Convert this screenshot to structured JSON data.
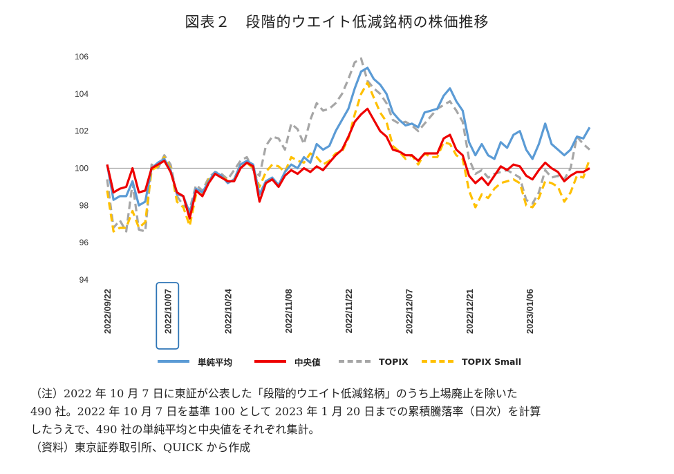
{
  "title": "図表２　段階的ウエイト低減銘柄の株価推移",
  "notes": [
    "（注）2022 年 10 月 7 日に東証が公表した「段階的ウエイト低減銘柄」のうち上場廃止を除いた",
    "490 社。2022 年 10 月 7 日を基準 100 として 2023 年 1 月 20 日までの累積騰落率（日次）を計算",
    "したうえで、490 社の単純平均と中央値をそれぞれ集計。",
    "（資料）東京証券取引所、QUICK から作成"
  ],
  "chart_data": {
    "type": "line",
    "title": "",
    "xlabel": "",
    "ylabel": "",
    "ylim": [
      94,
      106
    ],
    "yticks": [
      "94",
      "96",
      "98",
      "100",
      "102",
      "104",
      "106"
    ],
    "xticks": [
      "2022/09/22",
      "2022/10/07",
      "2022/10/24",
      "2022/11/08",
      "2022/11/22",
      "2022/12/07",
      "2022/12/21",
      "2023/01/06"
    ],
    "highlighted_xtick": "2022/10/07",
    "reference_line": 100,
    "grid": false,
    "legend_position": "bottom",
    "series": [
      {
        "name": "単純平均",
        "color": "#5b9bd5",
        "style": "solid",
        "values": [
          100.2,
          98.3,
          98.5,
          98.5,
          99.3,
          98.0,
          98.2,
          100.0,
          100.3,
          100.5,
          99.9,
          98.6,
          98.5,
          97.6,
          98.9,
          98.7,
          99.3,
          99.8,
          99.6,
          99.2,
          99.4,
          100.2,
          100.4,
          100.2,
          98.6,
          99.3,
          99.5,
          99.1,
          99.8,
          100.2,
          100.0,
          100.6,
          100.3,
          101.3,
          101.0,
          101.2,
          102.0,
          102.6,
          103.2,
          104.3,
          105.2,
          105.4,
          104.8,
          104.5,
          104.0,
          103.0,
          102.6,
          102.3,
          102.4,
          102.2,
          103.0,
          103.1,
          103.2,
          103.9,
          104.3,
          103.6,
          103.1,
          101.4,
          100.7,
          101.3,
          100.7,
          100.5,
          101.4,
          101.1,
          101.8,
          102.0,
          101.0,
          100.5,
          101.3,
          102.4,
          101.3,
          101.0,
          100.7,
          101.0,
          101.7,
          101.6,
          102.2
        ]
      },
      {
        "name": "中央値",
        "color": "#ee0000",
        "style": "solid",
        "values": [
          100.2,
          98.7,
          98.9,
          99.0,
          100.0,
          98.7,
          98.8,
          100.0,
          100.2,
          100.4,
          99.8,
          98.7,
          98.5,
          97.3,
          98.8,
          98.5,
          99.2,
          99.7,
          99.5,
          99.3,
          99.3,
          100.0,
          100.3,
          100.1,
          98.2,
          99.2,
          99.4,
          99.0,
          99.6,
          99.9,
          99.7,
          100.0,
          99.8,
          100.1,
          99.9,
          100.3,
          100.7,
          101.0,
          101.7,
          102.5,
          102.9,
          103.2,
          102.6,
          102.0,
          101.7,
          101.0,
          100.9,
          100.7,
          100.7,
          100.4,
          100.8,
          100.8,
          100.8,
          101.6,
          101.8,
          101.0,
          100.7,
          99.6,
          99.2,
          99.5,
          99.1,
          99.6,
          100.1,
          99.9,
          100.2,
          100.1,
          99.6,
          99.4,
          99.9,
          100.3,
          100.0,
          99.8,
          99.3,
          99.6,
          99.8,
          99.8,
          100.0
        ]
      },
      {
        "name": "TOPIX",
        "color": "#a6a6a6",
        "style": "dashed",
        "values": [
          99.4,
          96.8,
          97.2,
          96.6,
          99.2,
          96.7,
          96.6,
          100.2,
          100.0,
          100.7,
          100.2,
          98.5,
          98.0,
          97.8,
          99.1,
          98.8,
          99.5,
          99.8,
          99.7,
          99.4,
          99.9,
          100.4,
          100.6,
          99.9,
          99.6,
          101.2,
          101.7,
          101.6,
          101.0,
          102.4,
          102.1,
          101.3,
          102.6,
          103.5,
          103.1,
          103.2,
          103.5,
          104.0,
          104.8,
          105.7,
          105.9,
          104.7,
          104.3,
          104.0,
          103.5,
          102.6,
          102.4,
          102.5,
          102.3,
          102.0,
          102.4,
          102.8,
          103.2,
          103.4,
          103.6,
          103.1,
          102.5,
          100.5,
          99.7,
          99.9,
          99.5,
          99.7,
          99.8,
          99.9,
          99.7,
          99.5,
          98.3,
          98.1,
          98.7,
          99.9,
          99.5,
          99.6,
          99.4,
          100.0,
          101.7,
          101.3,
          101.0
        ]
      },
      {
        "name": "TOPIX Small",
        "color": "#ffc000",
        "style": "dashed",
        "values": [
          98.8,
          96.6,
          96.8,
          96.8,
          97.7,
          96.8,
          97.1,
          99.9,
          100.1,
          100.6,
          100.0,
          98.2,
          97.9,
          96.9,
          98.6,
          98.6,
          99.4,
          99.7,
          99.6,
          99.3,
          99.4,
          100.2,
          100.3,
          100.0,
          99.0,
          99.8,
          100.2,
          100.1,
          99.8,
          100.6,
          100.4,
          100.3,
          100.8,
          100.6,
          100.2,
          100.4,
          100.8,
          100.9,
          101.6,
          102.9,
          104.0,
          104.6,
          103.8,
          103.0,
          102.5,
          101.2,
          100.9,
          100.5,
          100.7,
          100.2,
          100.8,
          100.6,
          100.6,
          101.4,
          101.3,
          100.7,
          100.5,
          98.8,
          97.9,
          98.6,
          98.4,
          98.9,
          99.2,
          99.3,
          99.4,
          99.2,
          98.0,
          97.9,
          98.4,
          99.3,
          99.2,
          99.0,
          98.2,
          98.7,
          99.6,
          99.5,
          100.5
        ]
      }
    ]
  }
}
